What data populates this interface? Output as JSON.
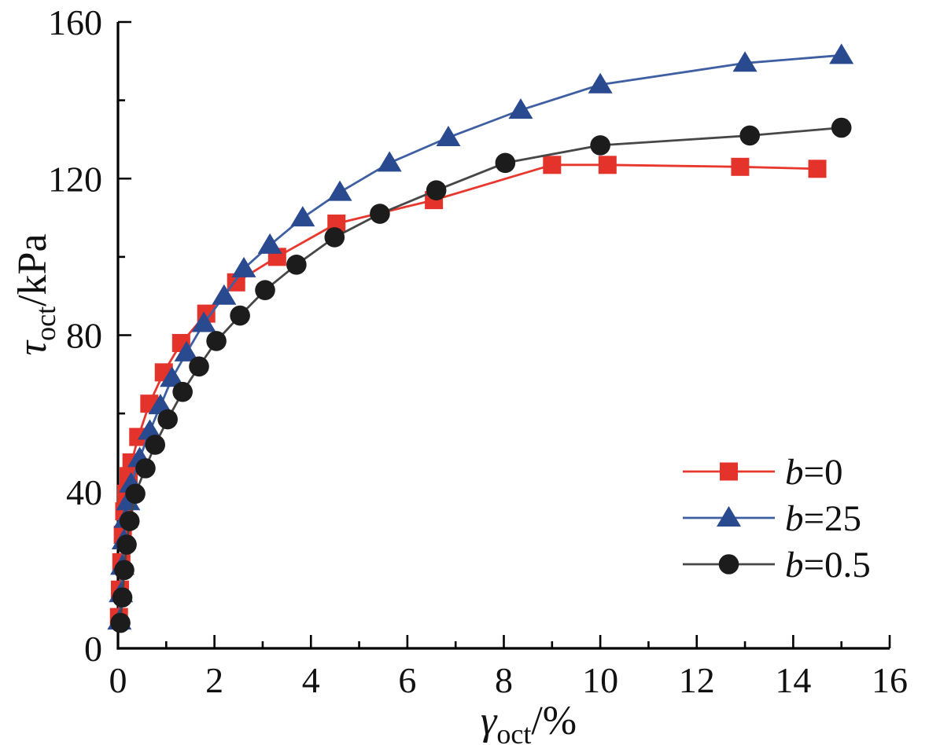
{
  "chart_data": {
    "type": "line",
    "title": "",
    "xlabel": {
      "symbol": "γ",
      "sub": "oct",
      "rest": "/%"
    },
    "ylabel": {
      "symbol": "τ",
      "sub": "oct",
      "rest": "/kPa"
    },
    "xlim": [
      0,
      16
    ],
    "ylim": [
      0,
      160
    ],
    "x_major_ticks": [
      0,
      2,
      4,
      6,
      8,
      10,
      12,
      14,
      16
    ],
    "x_minor_ticks": [
      1,
      3,
      5,
      7,
      9,
      11,
      13,
      15
    ],
    "y_major_ticks": [
      0,
      40,
      80,
      120,
      160
    ],
    "y_minor_ticks": [
      20,
      60,
      100,
      140
    ],
    "grid": false,
    "legend_position": "lower right",
    "axis_color": "#000000",
    "series": [
      {
        "name": "b=0",
        "legend_label": {
          "var": "b",
          "rest": "=0"
        },
        "marker": "square",
        "marker_color": "#e3332a",
        "line_color": "#e8382e",
        "points": [
          [
            0.02,
            8
          ],
          [
            0.04,
            15
          ],
          [
            0.07,
            22
          ],
          [
            0.1,
            29
          ],
          [
            0.13,
            35
          ],
          [
            0.17,
            39.5
          ],
          [
            0.22,
            44
          ],
          [
            0.28,
            47.5
          ],
          [
            0.42,
            54
          ],
          [
            0.65,
            62.5
          ],
          [
            0.95,
            70.5
          ],
          [
            1.31,
            78
          ],
          [
            1.83,
            85.5
          ],
          [
            2.45,
            93.5
          ],
          [
            3.3,
            100
          ],
          [
            4.53,
            108.5
          ],
          [
            6.55,
            114.5
          ],
          [
            9.0,
            123.5
          ],
          [
            10.15,
            123.5
          ],
          [
            12.9,
            123
          ],
          [
            14.5,
            122.5
          ]
        ]
      },
      {
        "name": "b=25",
        "legend_label": {
          "var": "b",
          "rest": "=25"
        },
        "marker": "triangle",
        "marker_color": "#2a4a90",
        "line_color": "#3f5fa3",
        "points": [
          [
            0.03,
            7
          ],
          [
            0.06,
            14
          ],
          [
            0.09,
            21
          ],
          [
            0.12,
            27.5
          ],
          [
            0.16,
            33
          ],
          [
            0.21,
            37.5
          ],
          [
            0.27,
            42
          ],
          [
            0.45,
            48.5
          ],
          [
            0.66,
            55.5
          ],
          [
            0.88,
            62
          ],
          [
            1.12,
            69
          ],
          [
            1.42,
            75.5
          ],
          [
            1.78,
            83
          ],
          [
            2.2,
            90
          ],
          [
            2.61,
            97
          ],
          [
            3.15,
            103
          ],
          [
            3.83,
            110
          ],
          [
            4.6,
            116.5
          ],
          [
            5.63,
            124
          ],
          [
            6.85,
            130.5
          ],
          [
            8.35,
            137.5
          ],
          [
            10.0,
            144
          ],
          [
            13.0,
            149.5
          ],
          [
            15.0,
            151.5
          ]
        ]
      },
      {
        "name": "b=0.5",
        "legend_label": {
          "var": "b",
          "rest": "=0.5"
        },
        "marker": "circle",
        "marker_color": "#1c1c1c",
        "line_color": "#474747",
        "points": [
          [
            0.05,
            6.5
          ],
          [
            0.09,
            13
          ],
          [
            0.13,
            20
          ],
          [
            0.18,
            26.5
          ],
          [
            0.24,
            32.5
          ],
          [
            0.36,
            39.5
          ],
          [
            0.57,
            46
          ],
          [
            0.77,
            52
          ],
          [
            1.03,
            58.5
          ],
          [
            1.34,
            65.5
          ],
          [
            1.68,
            72
          ],
          [
            2.04,
            78.5
          ],
          [
            2.53,
            85
          ],
          [
            3.05,
            91.5
          ],
          [
            3.7,
            98
          ],
          [
            4.49,
            105
          ],
          [
            5.43,
            111
          ],
          [
            6.6,
            117
          ],
          [
            8.03,
            124
          ],
          [
            10.0,
            128.5
          ],
          [
            13.1,
            131
          ],
          [
            15.0,
            133
          ]
        ]
      }
    ]
  }
}
